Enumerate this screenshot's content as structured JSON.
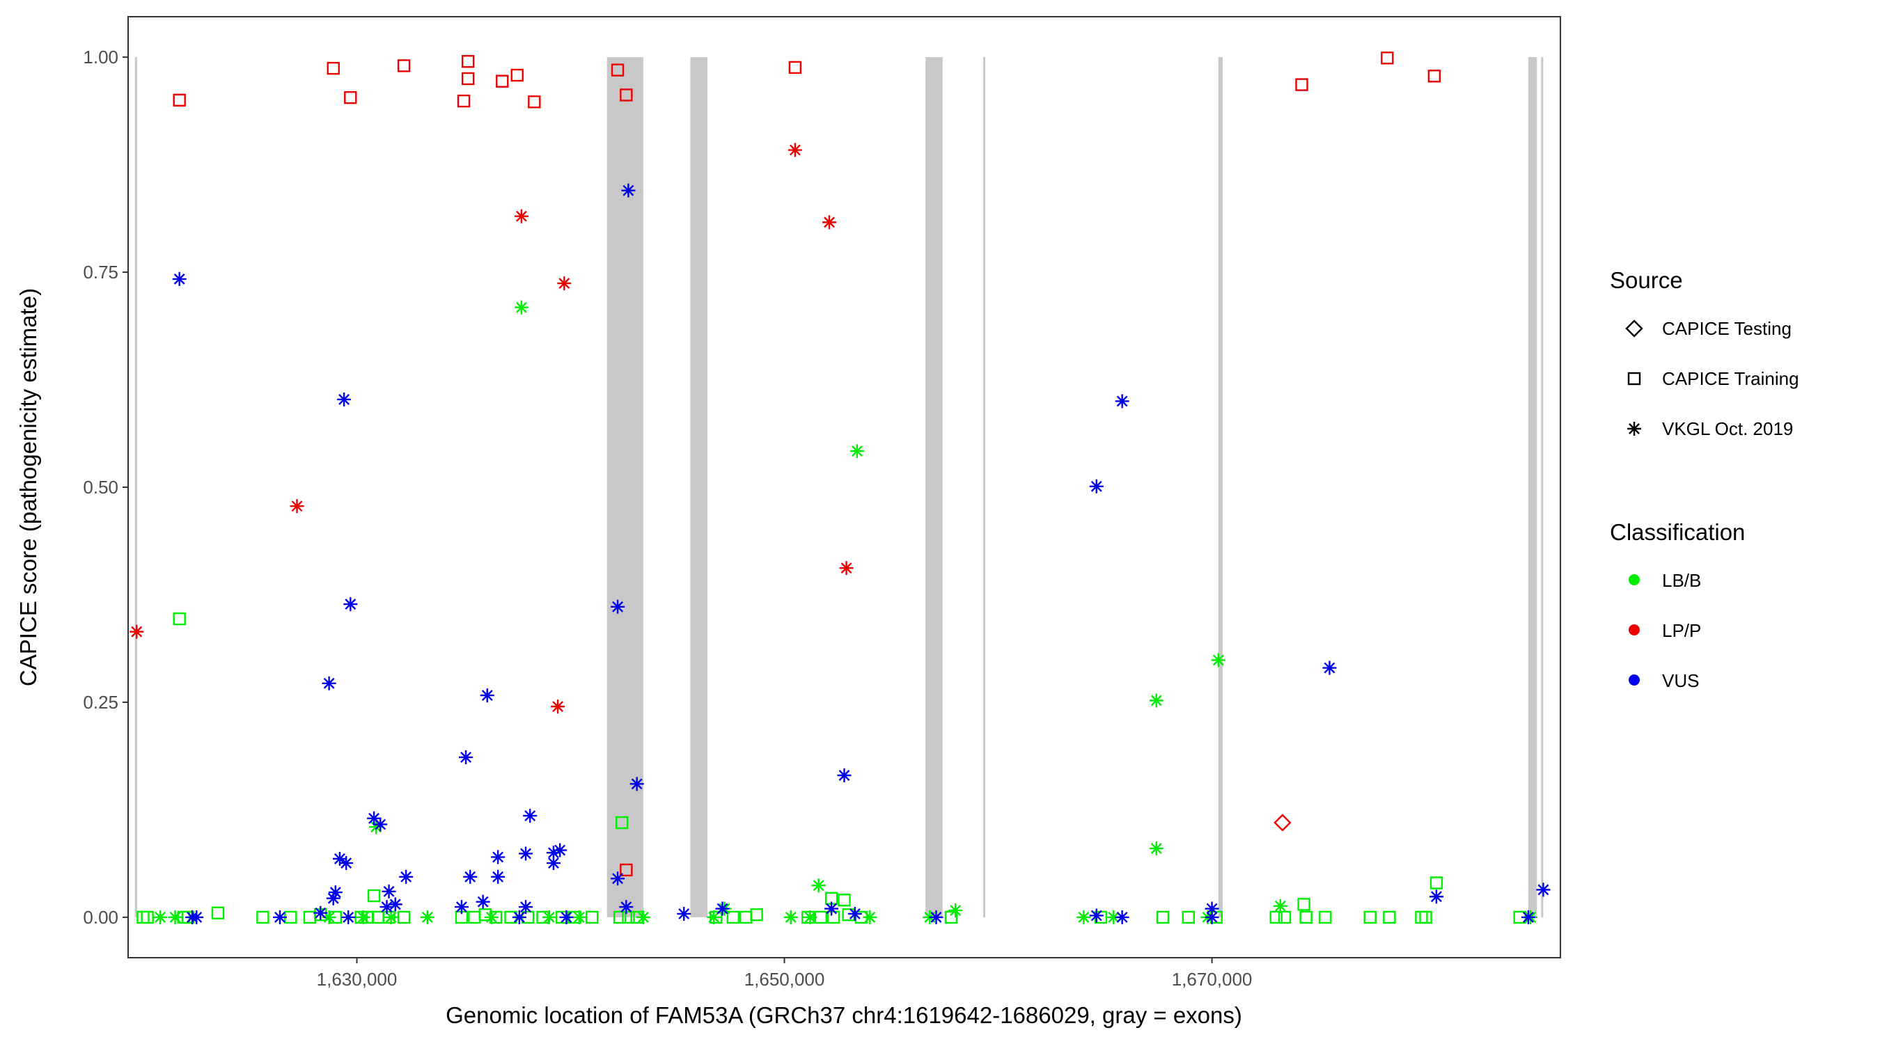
{
  "chart_data": {
    "type": "scatter",
    "xlabel": "Genomic location of FAM53A (GRCh37 chr4:1619642-1686029, gray = exons)",
    "ylabel": "CAPICE score (pathogenicity estimate)",
    "xlim": [
      1619300,
      1686300
    ],
    "ylim": [
      -0.047,
      1.047
    ],
    "x_ticks": [
      1630000,
      1650000,
      1670000
    ],
    "x_tick_labels": [
      "1,630,000",
      "1,650,000",
      "1,670,000"
    ],
    "y_ticks": [
      0,
      0.25,
      0.5,
      0.75,
      1.0
    ],
    "y_tick_labels": [
      "0.00",
      "0.25",
      "0.50",
      "0.75",
      "1.00"
    ],
    "grid": false,
    "legend_position": "right",
    "exons": [
      [
        1619620,
        1619720
      ],
      [
        1641700,
        1643400
      ],
      [
        1645600,
        1646400
      ],
      [
        1656600,
        1657400
      ],
      [
        1659300,
        1659380
      ],
      [
        1670300,
        1670500
      ],
      [
        1684800,
        1685200
      ],
      [
        1685400,
        1685480
      ]
    ],
    "legend": {
      "source_title": "Source",
      "source_items": [
        {
          "label": "CAPICE Testing",
          "shape": "diamond"
        },
        {
          "label": "CAPICE Training",
          "shape": "square"
        },
        {
          "label": "VKGL Oct. 2019",
          "shape": "star"
        }
      ],
      "class_title": "Classification",
      "class_items": [
        {
          "label": "LB/B",
          "color": "#00ee00"
        },
        {
          "label": "LP/P",
          "color": "#ee0000"
        },
        {
          "label": "VUS",
          "color": "#0000ee"
        }
      ]
    },
    "colors": {
      "LB/B": "#00ee00",
      "LP/P": "#ee0000",
      "VUS": "#0000ee"
    },
    "series": [
      {
        "source": "CAPICE Training",
        "class": "LP/P",
        "points": [
          [
            1621700,
            0.95
          ],
          [
            1628900,
            0.987
          ],
          [
            1629700,
            0.953
          ],
          [
            1632200,
            0.99
          ],
          [
            1635000,
            0.949
          ],
          [
            1635200,
            0.975
          ],
          [
            1635200,
            0.995
          ],
          [
            1636800,
            0.972
          ],
          [
            1637500,
            0.979
          ],
          [
            1638300,
            0.948
          ],
          [
            1642200,
            0.985
          ],
          [
            1642600,
            0.956
          ],
          [
            1650500,
            0.988
          ],
          [
            1674200,
            0.968
          ],
          [
            1678200,
            0.999
          ],
          [
            1680400,
            0.978
          ],
          [
            1642600,
            0.055
          ]
        ]
      },
      {
        "source": "CAPICE Training",
        "class": "LB/B",
        "points": [
          [
            1621700,
            0.347
          ],
          [
            1642400,
            0.11
          ],
          [
            1630800,
            0.025
          ],
          [
            1652200,
            0.022
          ],
          [
            1652800,
            0.02
          ],
          [
            1680500,
            0.04
          ],
          [
            1674300,
            0.015
          ],
          [
            1620000,
            0
          ],
          [
            1620200,
            0
          ],
          [
            1621900,
            0
          ],
          [
            1622100,
            0
          ],
          [
            1623500,
            0.005
          ],
          [
            1625600,
            0
          ],
          [
            1626900,
            0
          ],
          [
            1627800,
            0
          ],
          [
            1628300,
            0.003
          ],
          [
            1629000,
            0
          ],
          [
            1630200,
            0
          ],
          [
            1630500,
            0
          ],
          [
            1631000,
            0
          ],
          [
            1631500,
            0
          ],
          [
            1632200,
            0
          ],
          [
            1634900,
            0
          ],
          [
            1635500,
            0
          ],
          [
            1636000,
            0.003
          ],
          [
            1636500,
            0
          ],
          [
            1637200,
            0
          ],
          [
            1638000,
            0
          ],
          [
            1638700,
            0
          ],
          [
            1639600,
            0
          ],
          [
            1640200,
            0
          ],
          [
            1641000,
            0
          ],
          [
            1642300,
            0
          ],
          [
            1642700,
            0
          ],
          [
            1643100,
            0
          ],
          [
            1646800,
            0
          ],
          [
            1647600,
            0
          ],
          [
            1648200,
            0
          ],
          [
            1648700,
            0.003
          ],
          [
            1651100,
            0
          ],
          [
            1651700,
            0
          ],
          [
            1652300,
            0
          ],
          [
            1653000,
            0.003
          ],
          [
            1653600,
            0
          ],
          [
            1657800,
            0
          ],
          [
            1664800,
            0
          ],
          [
            1667700,
            0
          ],
          [
            1668900,
            0
          ],
          [
            1670200,
            0
          ],
          [
            1673000,
            0
          ],
          [
            1673400,
            0
          ],
          [
            1674400,
            0
          ],
          [
            1675300,
            0
          ],
          [
            1677400,
            0
          ],
          [
            1678300,
            0
          ],
          [
            1679800,
            0
          ],
          [
            1680000,
            0
          ],
          [
            1684400,
            0
          ]
        ]
      },
      {
        "source": "CAPICE Testing",
        "class": "LP/P",
        "points": [
          [
            1673300,
            0.11
          ]
        ]
      },
      {
        "source": "VKGL Oct. 2019",
        "class": "LP/P",
        "points": [
          [
            1619700,
            0.332
          ],
          [
            1627200,
            0.478
          ],
          [
            1637700,
            0.815
          ],
          [
            1639700,
            0.737
          ],
          [
            1639400,
            0.245
          ],
          [
            1650500,
            0.892
          ],
          [
            1652100,
            0.808
          ],
          [
            1652900,
            0.406
          ]
        ]
      },
      {
        "source": "VKGL Oct. 2019",
        "class": "LB/B",
        "points": [
          [
            1637700,
            0.709
          ],
          [
            1653400,
            0.542
          ],
          [
            1670300,
            0.299
          ],
          [
            1667400,
            0.252
          ],
          [
            1667400,
            0.08
          ],
          [
            1630900,
            0.105
          ],
          [
            1651600,
            0.037
          ],
          [
            1673200,
            0.013
          ],
          [
            1658000,
            0.008
          ],
          [
            1647200,
            0.01
          ],
          [
            1620800,
            0
          ],
          [
            1621500,
            0
          ],
          [
            1628700,
            0
          ],
          [
            1630300,
            0
          ],
          [
            1631600,
            0
          ],
          [
            1633300,
            0
          ],
          [
            1636300,
            0
          ],
          [
            1639000,
            0
          ],
          [
            1640400,
            0
          ],
          [
            1643400,
            0
          ],
          [
            1646700,
            0
          ],
          [
            1650300,
            0
          ],
          [
            1651200,
            0
          ],
          [
            1654000,
            0
          ],
          [
            1656800,
            0
          ],
          [
            1664000,
            0
          ],
          [
            1665400,
            0
          ],
          [
            1669800,
            0
          ],
          [
            1684900,
            0
          ]
        ]
      },
      {
        "source": "VKGL Oct. 2019",
        "class": "VUS",
        "points": [
          [
            1621700,
            0.742
          ],
          [
            1629400,
            0.602
          ],
          [
            1642700,
            0.845
          ],
          [
            1642200,
            0.361
          ],
          [
            1629700,
            0.364
          ],
          [
            1628700,
            0.272
          ],
          [
            1636100,
            0.258
          ],
          [
            1635100,
            0.186
          ],
          [
            1643100,
            0.155
          ],
          [
            1652800,
            0.165
          ],
          [
            1638100,
            0.118
          ],
          [
            1630800,
            0.115
          ],
          [
            1631100,
            0.108
          ],
          [
            1639500,
            0.078
          ],
          [
            1639200,
            0.075
          ],
          [
            1637900,
            0.074
          ],
          [
            1636600,
            0.07
          ],
          [
            1629200,
            0.068
          ],
          [
            1629500,
            0.063
          ],
          [
            1639200,
            0.063
          ],
          [
            1632300,
            0.047
          ],
          [
            1635300,
            0.047
          ],
          [
            1636600,
            0.047
          ],
          [
            1642200,
            0.045
          ],
          [
            1631500,
            0.03
          ],
          [
            1629000,
            0.029
          ],
          [
            1628900,
            0.022
          ],
          [
            1635900,
            0.018
          ],
          [
            1631800,
            0.015
          ],
          [
            1631400,
            0.012
          ],
          [
            1634900,
            0.012
          ],
          [
            1637900,
            0.012
          ],
          [
            1642600,
            0.012
          ],
          [
            1647100,
            0.01
          ],
          [
            1652200,
            0.01
          ],
          [
            1670000,
            0.01
          ],
          [
            1628300,
            0.005
          ],
          [
            1645300,
            0.004
          ],
          [
            1653300,
            0.004
          ],
          [
            1664600,
            0.002
          ],
          [
            1622300,
            0
          ],
          [
            1622500,
            0
          ],
          [
            1626400,
            0
          ],
          [
            1629600,
            0
          ],
          [
            1637600,
            0
          ],
          [
            1639800,
            0
          ],
          [
            1657100,
            0
          ],
          [
            1665800,
            0
          ],
          [
            1670000,
            0
          ],
          [
            1684800,
            0
          ],
          [
            1664600,
            0.501
          ],
          [
            1665800,
            0.6
          ],
          [
            1675500,
            0.29
          ],
          [
            1680500,
            0.024
          ],
          [
            1685500,
            0.032
          ]
        ]
      }
    ]
  }
}
